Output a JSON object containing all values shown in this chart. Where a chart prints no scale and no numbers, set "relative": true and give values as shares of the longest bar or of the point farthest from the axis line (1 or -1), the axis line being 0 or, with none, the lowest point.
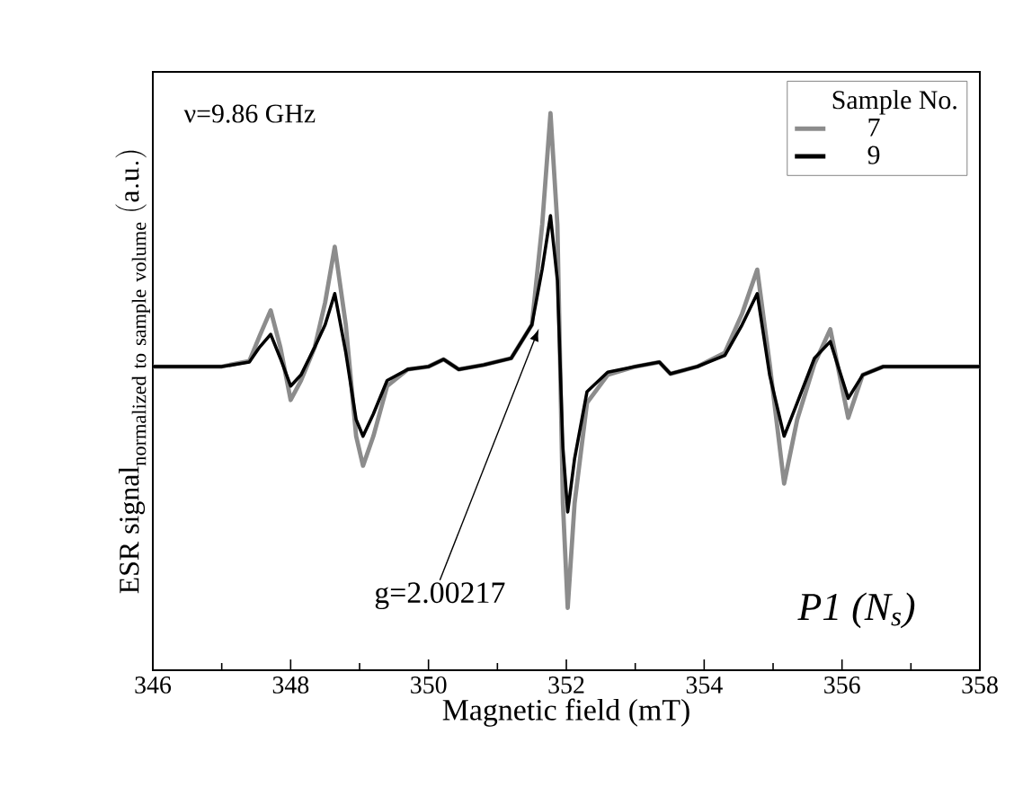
{
  "chart_data": {
    "type": "line",
    "relative": true,
    "xlabel": "Magnetic field (mT)",
    "ylabel": "\\mathrm{ESR\\ signal}_{\\mathrm{normalized\\ to\\ sample\\ volume}}\\ \\mathrm{(a.u.)}",
    "legend_title": "Sample No.",
    "legend": "top right",
    "xlim": [
      346,
      358
    ],
    "xticks": [
      346,
      348,
      350,
      352,
      354,
      356,
      358
    ],
    "annotations": [
      "ν=9.86 GHz",
      {
        "text": "g=2.00217",
        "x": 351.6,
        "y": 0.613
      },
      "P1 (N$_{s}$)"
    ],
    "x": [
      346.0,
      347.0,
      347.4,
      347.55,
      347.71,
      347.85,
      348.0,
      348.15,
      348.35,
      348.5,
      348.64,
      348.8,
      348.95,
      349.05,
      349.2,
      349.4,
      349.7,
      350.0,
      350.22,
      350.44,
      350.8,
      351.2,
      351.5,
      351.65,
      351.77,
      351.87,
      351.95,
      352.02,
      352.12,
      352.3,
      352.6,
      353.0,
      353.35,
      353.51,
      353.9,
      354.3,
      354.55,
      354.77,
      354.95,
      355.16,
      355.35,
      355.6,
      355.83,
      356.09,
      356.3,
      356.6,
      358.0
    ],
    "series": [
      {
        "name": "7",
        "color": "#8c8c8c",
        "values": [
          0.545,
          0.545,
          0.555,
          0.6,
          0.646,
          0.58,
          0.485,
          0.52,
          0.58,
          0.66,
          0.76,
          0.62,
          0.42,
          0.367,
          0.42,
          0.51,
          0.54,
          0.545,
          0.558,
          0.54,
          0.548,
          0.56,
          0.62,
          0.8,
          1.0,
          0.8,
          0.3,
          0.112,
          0.3,
          0.48,
          0.53,
          0.545,
          0.553,
          0.532,
          0.545,
          0.57,
          0.64,
          0.719,
          0.55,
          0.335,
          0.45,
          0.55,
          0.612,
          0.453,
          0.53,
          0.545,
          0.545
        ]
      },
      {
        "name": "9",
        "color": "#000000",
        "values": [
          0.545,
          0.545,
          0.553,
          0.58,
          0.603,
          0.56,
          0.51,
          0.53,
          0.58,
          0.62,
          0.676,
          0.57,
          0.45,
          0.42,
          0.46,
          0.52,
          0.54,
          0.545,
          0.558,
          0.54,
          0.548,
          0.56,
          0.62,
          0.72,
          0.816,
          0.7,
          0.4,
          0.284,
          0.38,
          0.5,
          0.535,
          0.545,
          0.553,
          0.532,
          0.545,
          0.565,
          0.62,
          0.676,
          0.53,
          0.42,
          0.48,
          0.56,
          0.59,
          0.488,
          0.53,
          0.545,
          0.545
        ]
      }
    ]
  }
}
